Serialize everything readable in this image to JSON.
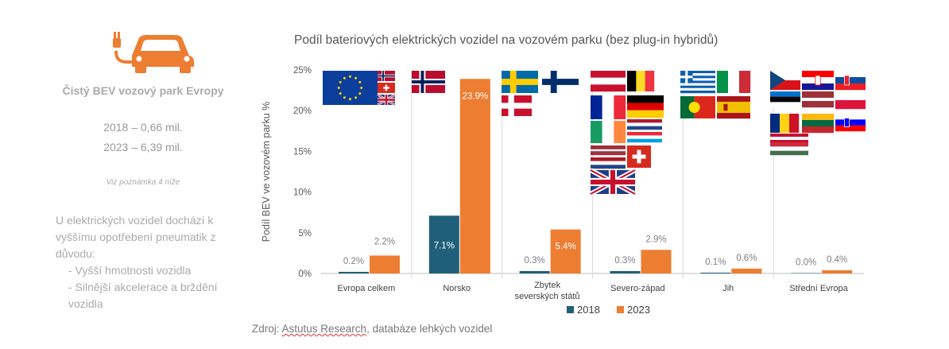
{
  "left_panel": {
    "car_icon": "ev-car-plug-icon",
    "car_color": "#ED7D31",
    "title": "Čistý BEV vozový park Evropy",
    "line_2018": "2018 – 0,66 mil.",
    "line_2023": "2023 – 6,39 mil.",
    "note": "Viz poznámka 4 níže",
    "desc_intro": "U elektrických vozidel dochází k vyššímu opotřebení pneumatik z důvodu:",
    "desc_items": [
      "-  Vyšší hmotnosti vozidla",
      "-  Silnější akcelerace a brždění vozidla"
    ]
  },
  "source": {
    "prefix": "Zdroj: ",
    "underlined": "Astutus Research",
    "rest": ", databáze lehkých vozidel"
  },
  "chart_data": {
    "type": "bar",
    "title": "Podíl bateriových elektrických vozidel na vozovém parku (bez plug-in hybridů)",
    "ylabel": "Podíl BEV ve vozovém parku %",
    "xlabel": "",
    "ylim": [
      0,
      25
    ],
    "yticks": [
      "0%",
      "5%",
      "10%",
      "15%",
      "20%",
      "25%"
    ],
    "categories": [
      "Evropa celkem",
      "Norsko",
      "Zbytek severských států",
      "Severo-západ",
      "Jih",
      "Střední Evropa"
    ],
    "series": [
      {
        "name": "2018",
        "color": "#1F5F7A",
        "values": [
          0.2,
          7.1,
          0.3,
          0.3,
          0.1,
          0.0
        ],
        "labels": [
          "0.2%",
          "7.1%",
          "0.3%",
          "0.3%",
          "0.1%",
          "0.0%"
        ]
      },
      {
        "name": "2023",
        "color": "#ED7D31",
        "values": [
          2.2,
          23.9,
          5.4,
          2.9,
          0.6,
          0.4
        ],
        "labels": [
          "2.2%",
          "23.9%",
          "5.4%",
          "2.9%",
          "0.6%",
          "0.4%"
        ]
      }
    ],
    "legend": "bottom",
    "grid": false,
    "flags": [
      [
        "eu-flag-icon",
        "norway-flag-icon",
        "switzerland-flag-icon",
        "uk-flag-icon"
      ],
      [
        "norway-flag-icon"
      ],
      [
        "sweden-flag-icon",
        "finland-flag-icon",
        "denmark-flag-icon"
      ],
      [
        "austria-flag-icon",
        "belgium-flag-icon",
        "france-flag-icon",
        "germany-flag-icon",
        "netherlands-flag-icon",
        "luxembourg-flag-icon",
        "ireland-flag-icon",
        "switzerland-flag-icon",
        "uk-flag-icon",
        "latvia-flag-icon"
      ],
      [
        "greece-flag-icon",
        "italy-flag-icon",
        "portugal-flag-icon",
        "spain-flag-icon"
      ],
      [
        "czechia-flag-icon",
        "croatia-flag-icon",
        "slovakia-flag-icon",
        "estonia-flag-icon",
        "latvia-flag-icon",
        "poland-flag-icon",
        "romania-flag-icon",
        "lithuania-flag-icon",
        "slovenia-flag-icon",
        "austria-flag-icon",
        "hungary-flag-icon"
      ]
    ]
  }
}
